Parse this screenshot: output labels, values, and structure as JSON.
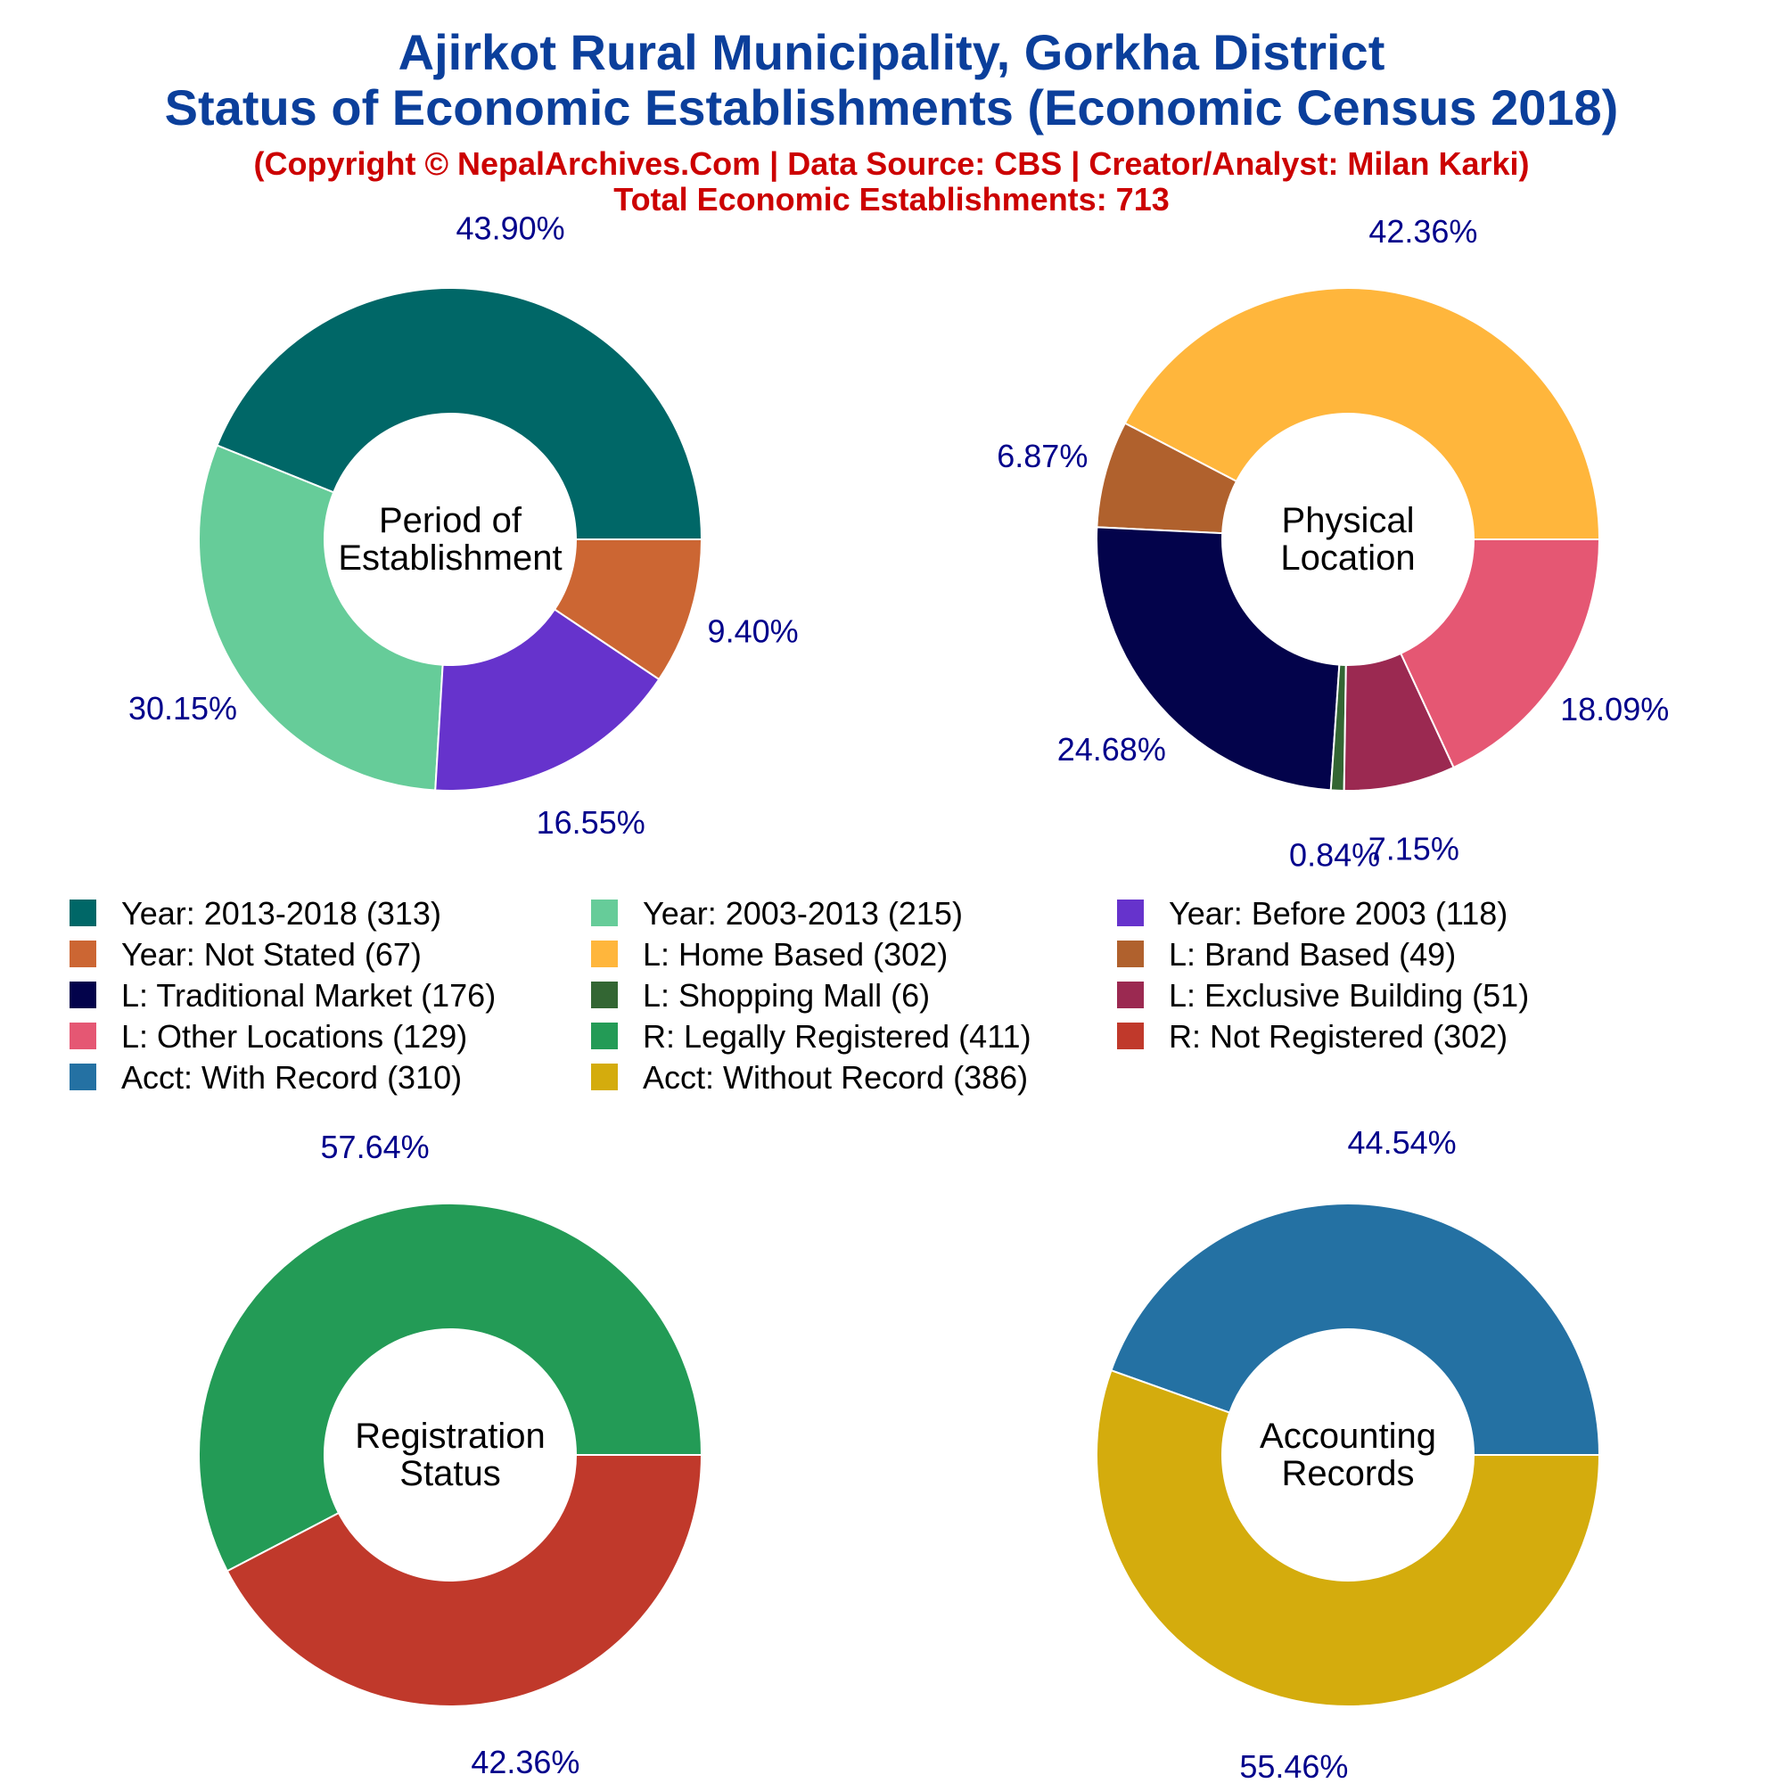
{
  "title": {
    "line1": "Ajirkot Rural Municipality, Gorkha District",
    "line2": "Status of Economic Establishments (Economic Census 2018)",
    "line3": "(Copyright © NepalArchives.Com | Data Source: CBS | Creator/Analyst: Milan Karki)",
    "line4": "Total Economic Establishments: 713"
  },
  "colors": {
    "title": "#0B3F9B",
    "subtitle": "#CC0000",
    "percent_label": "#00008B"
  },
  "chart_data": [
    {
      "type": "pie",
      "center_label": [
        "Period of",
        "Establishment"
      ],
      "labels": [
        "Year: 2013-2018",
        "Year: 2003-2013",
        "Year: Before 2003",
        "Year: Not Stated"
      ],
      "values": [
        313,
        215,
        118,
        67
      ],
      "percent_labels": [
        "43.90%",
        "30.15%",
        "16.55%",
        "9.40%"
      ],
      "colors": [
        "#006767",
        "#66CC99",
        "#6633CC",
        "#CC6633"
      ]
    },
    {
      "type": "pie",
      "center_label": [
        "Physical",
        "Location"
      ],
      "labels": [
        "L: Home Based",
        "L: Brand Based",
        "L: Traditional Market",
        "L: Shopping Mall",
        "L: Exclusive Building",
        "L: Other Locations"
      ],
      "values": [
        302,
        49,
        176,
        6,
        51,
        129
      ],
      "percent_labels": [
        "42.36%",
        "6.87%",
        "24.68%",
        "0.84%",
        "7.15%",
        "18.09%"
      ],
      "colors": [
        "#FFB63C",
        "#B0612D",
        "#03034B",
        "#336633",
        "#9B2951",
        "#E55773"
      ]
    },
    {
      "type": "pie",
      "center_label": [
        "Registration",
        "Status"
      ],
      "labels": [
        "R: Legally Registered",
        "R: Not Registered"
      ],
      "values": [
        411,
        302
      ],
      "percent_labels": [
        "57.64%",
        "42.36%"
      ],
      "colors": [
        "#239B56",
        "#C0392B"
      ]
    },
    {
      "type": "pie",
      "center_label": [
        "Accounting",
        "Records"
      ],
      "labels": [
        "Acct: With Record",
        "Acct: Without Record"
      ],
      "values": [
        310,
        386
      ],
      "percent_labels": [
        "44.54%",
        "55.46%"
      ],
      "colors": [
        "#2471A3",
        "#D4AC0D"
      ]
    }
  ],
  "legend": [
    {
      "label": "Year: 2013-2018 (313)",
      "color": "#006767"
    },
    {
      "label": "Year: 2003-2013 (215)",
      "color": "#66CC99"
    },
    {
      "label": "Year: Before 2003 (118)",
      "color": "#6633CC"
    },
    {
      "label": "Year: Not Stated (67)",
      "color": "#CC6633"
    },
    {
      "label": "L: Home Based (302)",
      "color": "#FFB63C"
    },
    {
      "label": "L: Brand Based (49)",
      "color": "#B0612D"
    },
    {
      "label": "L: Traditional Market (176)",
      "color": "#03034B"
    },
    {
      "label": "L: Shopping Mall (6)",
      "color": "#336633"
    },
    {
      "label": "L: Exclusive Building (51)",
      "color": "#9B2951"
    },
    {
      "label": "L: Other Locations (129)",
      "color": "#E55773"
    },
    {
      "label": "R: Legally Registered (411)",
      "color": "#239B56"
    },
    {
      "label": "R: Not Registered (302)",
      "color": "#C0392B"
    },
    {
      "label": "Acct: With Record (310)",
      "color": "#2471A3"
    },
    {
      "label": "Acct: Without Record (386)",
      "color": "#D4AC0D"
    }
  ]
}
